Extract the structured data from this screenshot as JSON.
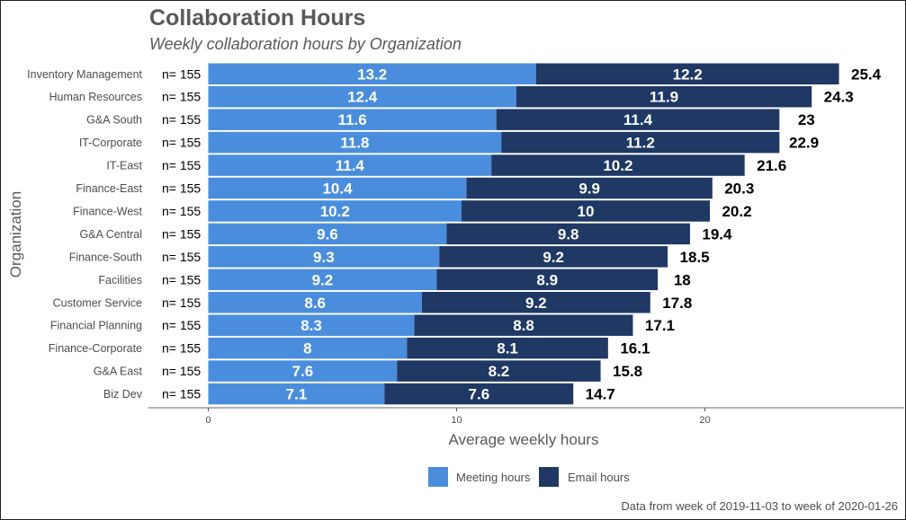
{
  "chart_data": {
    "type": "bar",
    "orientation": "horizontal",
    "stacked": true,
    "title": "Collaboration Hours",
    "subtitle": "Weekly collaboration hours by Organization",
    "xlabel": "Average weekly hours",
    "ylabel": "Organization",
    "xlim": [
      0,
      27
    ],
    "xticks": [
      0,
      10,
      20
    ],
    "grid": false,
    "legend_position": "bottom",
    "caption": "Data from week of 2019-11-03 to week of 2020-01-26",
    "categories": [
      "Inventory Management",
      "Human Resources",
      "G&A South",
      "IT-Corporate",
      "IT-East",
      "Finance-East",
      "Finance-West",
      "G&A Central",
      "Finance-South",
      "Facilities",
      "Customer Service",
      "Financial Planning",
      "Finance-Corporate",
      "G&A East",
      "Biz Dev"
    ],
    "n_labels": [
      "n= 155",
      "n= 155",
      "n= 155",
      "n= 155",
      "n= 155",
      "n= 155",
      "n= 155",
      "n= 155",
      "n= 155",
      "n= 155",
      "n= 155",
      "n= 155",
      "n= 155",
      "n= 155",
      "n= 155"
    ],
    "series": [
      {
        "name": "Meeting hours",
        "color": "#4a8ddc",
        "values": [
          13.2,
          12.4,
          11.6,
          11.8,
          11.4,
          10.4,
          10.2,
          9.6,
          9.3,
          9.2,
          8.6,
          8.3,
          8,
          7.6,
          7.1
        ]
      },
      {
        "name": "Email hours",
        "color": "#1f3864",
        "values": [
          12.2,
          11.9,
          11.4,
          11.2,
          10.2,
          9.9,
          10,
          9.8,
          9.2,
          8.9,
          9.2,
          8.8,
          8.1,
          8.2,
          7.6
        ]
      }
    ],
    "totals": [
      25.4,
      24.3,
      23,
      22.9,
      21.6,
      20.3,
      20.2,
      19.4,
      18.5,
      18,
      17.8,
      17.1,
      16.1,
      15.8,
      14.7
    ]
  }
}
